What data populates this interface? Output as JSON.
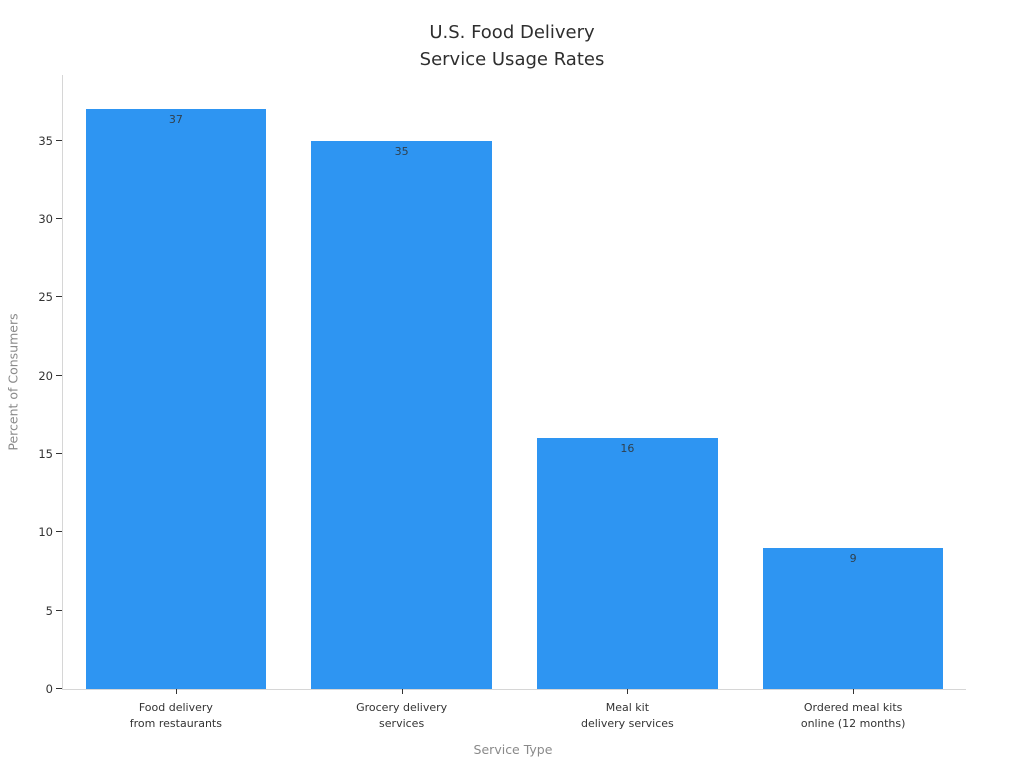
{
  "chart_data": {
    "type": "bar",
    "title": "U.S. Food Delivery\nService Usage Rates",
    "xlabel": "Service Type",
    "ylabel": "Percent of Consumers",
    "categories": [
      "Food delivery\nfrom restaurants",
      "Grocery delivery\nservices",
      "Meal kit\ndelivery services",
      "Ordered meal kits\nonline (12 months)"
    ],
    "values": [
      37,
      35,
      16,
      9
    ],
    "bar_labels": [
      "37",
      "35",
      "16",
      "9"
    ],
    "yticks": [
      0,
      5,
      10,
      15,
      20,
      25,
      30,
      35
    ],
    "ylim": [
      0,
      39.2
    ],
    "bar_width_frac": 0.8,
    "grid": false,
    "legend": false
  },
  "colors": {
    "bar": "#2e95f2",
    "axis_line": "#d6d6d6",
    "tick_mark": "#333333",
    "tick_label": "#333333",
    "value_label": "#30404d",
    "category_label": "#333333",
    "axis_title": "#8a8a8a",
    "title": "#2e2e2e",
    "background": "#ffffff"
  }
}
